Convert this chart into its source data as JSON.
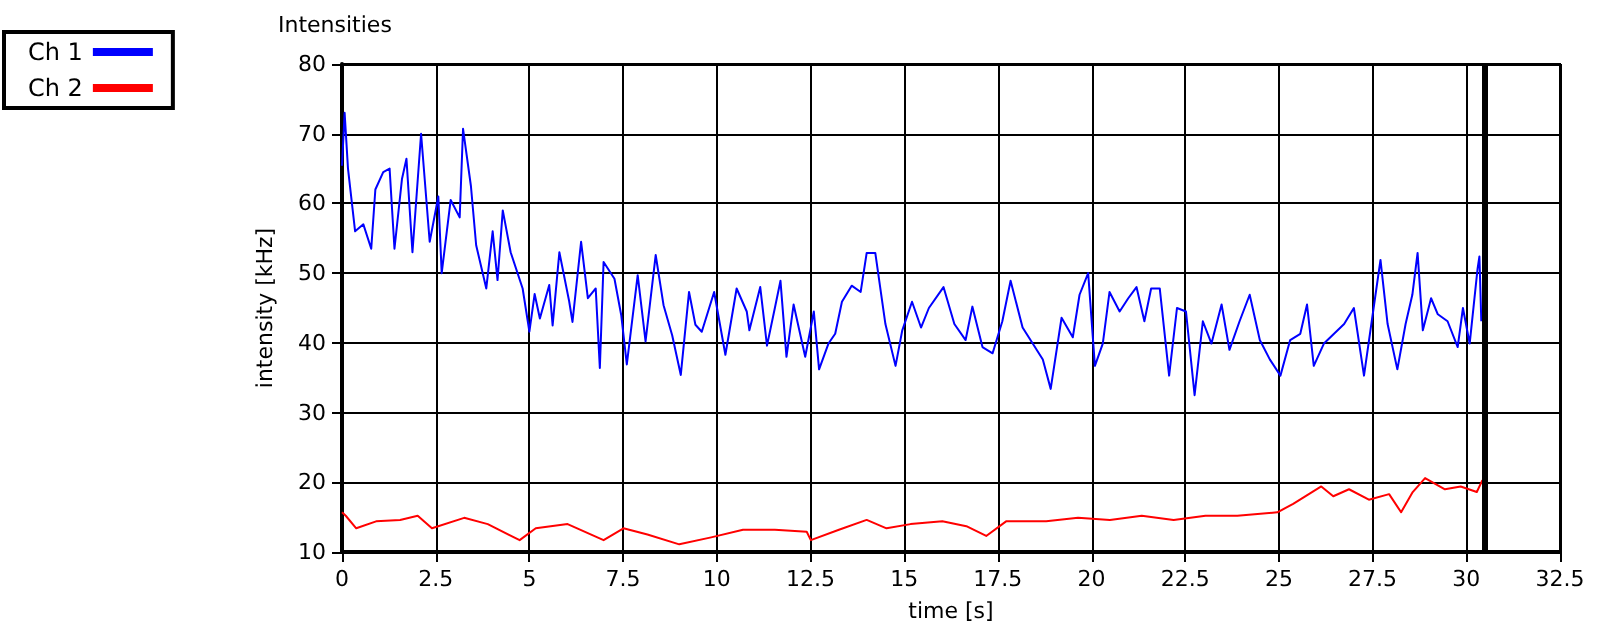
{
  "chart_data": {
    "type": "line",
    "title": "Intensities",
    "xlabel": "time [s]",
    "ylabel": "intensity [kHz]",
    "xlim": [
      0,
      32.5
    ],
    "xticks": [
      0,
      2.5,
      5,
      7.5,
      10,
      12.5,
      15,
      17.5,
      20,
      22.5,
      25,
      27.5,
      30,
      32.5
    ],
    "ylim": [
      10,
      80
    ],
    "yticks": [
      10,
      20,
      30,
      40,
      50,
      60,
      70,
      80
    ],
    "grid": true,
    "legend": "top left",
    "marker": "none",
    "line_style": "solid",
    "ref_lines": [
      {
        "axis": "x",
        "value": 30.5,
        "color": "#000000"
      }
    ],
    "series": [
      {
        "name": "Ch 1",
        "color": "#0000ff",
        "x": [
          0,
          0.07,
          0.16,
          0.35,
          0.57,
          0.78,
          0.89,
          1.1,
          1.27,
          1.4,
          1.6,
          1.72,
          1.88,
          2.11,
          2.34,
          2.57,
          2.66,
          2.9,
          3.14,
          3.23,
          3.44,
          3.58,
          3.85,
          4.02,
          4.15,
          4.29,
          4.5,
          4.82,
          5.0,
          5.14,
          5.28,
          5.53,
          5.62,
          5.8,
          6.06,
          6.15,
          6.38,
          6.56,
          6.77,
          6.88,
          6.98,
          7.27,
          7.45,
          7.6,
          7.89,
          8.1,
          8.37,
          8.58,
          8.81,
          9.04,
          9.26,
          9.43,
          9.6,
          9.93,
          10.23,
          10.53,
          10.8,
          10.87,
          11.16,
          11.34,
          11.55,
          11.7,
          11.86,
          12.05,
          12.36,
          12.59,
          12.73,
          12.98,
          13.16,
          13.34,
          13.6,
          13.84,
          14.0,
          14.23,
          14.5,
          14.77,
          14.95,
          15.21,
          15.45,
          15.66,
          16.05,
          16.34,
          16.64,
          16.82,
          17.09,
          17.36,
          17.62,
          17.84,
          18.16,
          18.43,
          18.7,
          18.91,
          19.2,
          19.5,
          19.68,
          19.91,
          20.09,
          20.3,
          20.48,
          20.75,
          20.98,
          21.2,
          21.41,
          21.59,
          21.82,
          22.07,
          22.28,
          22.52,
          22.75,
          22.97,
          23.2,
          23.47,
          23.68,
          23.95,
          24.22,
          24.49,
          24.76,
          25.04,
          25.3,
          25.57,
          25.75,
          25.93,
          26.2,
          26.47,
          26.74,
          27.0,
          27.27,
          27.54,
          27.71,
          27.9,
          28.16,
          28.38,
          28.56,
          28.7,
          28.84,
          29.06,
          29.24,
          29.5,
          29.77,
          29.91,
          30.09,
          30.3,
          30.35,
          30.4
        ],
        "values": [
          65.4,
          73,
          65,
          56,
          57,
          53.5,
          62,
          64.5,
          65,
          53.5,
          63.5,
          66.4,
          53,
          70,
          54.5,
          61,
          50,
          60.5,
          58,
          70.7,
          62.5,
          54,
          47.8,
          56,
          49,
          59,
          53,
          47.8,
          41.6,
          47,
          43.5,
          48.3,
          42.5,
          53,
          46,
          43,
          54.5,
          46.4,
          47.8,
          36.4,
          51.6,
          49.2,
          44,
          36.9,
          49.7,
          40.2,
          52.6,
          45.4,
          41.1,
          35.4,
          47.3,
          42.6,
          41.6,
          47.3,
          38.3,
          47.8,
          44.5,
          41.8,
          48,
          39.6,
          45,
          48.9,
          38,
          45.5,
          38,
          44.5,
          36.2,
          39.9,
          41.3,
          45.9,
          48.2,
          47.3,
          52.9,
          52.9,
          42.7,
          36.7,
          41.8,
          45.9,
          42.2,
          45,
          48,
          42.7,
          40.4,
          45.2,
          39.4,
          38.5,
          43.1,
          48.9,
          42.2,
          39.9,
          37.6,
          33.4,
          43.6,
          40.8,
          46.9,
          50,
          36.7,
          39.9,
          47.3,
          44.5,
          46.4,
          48,
          43.1,
          47.8,
          47.8,
          35.3,
          45,
          44.5,
          32.5,
          43.1,
          39.9,
          45.5,
          39,
          43.1,
          46.9,
          40.4,
          37.6,
          35.3,
          40.4,
          41.3,
          45.5,
          36.7,
          39.9,
          41.3,
          42.7,
          45,
          35.3,
          45.5,
          51.9,
          42.7,
          36.2,
          42.7,
          46.9,
          52.9,
          41.8,
          46.4,
          44.1,
          43.1,
          39.4,
          45,
          39.9,
          50.6,
          52.4,
          43.1
        ]
      },
      {
        "name": "Ch 2",
        "color": "#ff0000",
        "x": [
          0,
          0.1,
          0.38,
          0.91,
          1.55,
          2.02,
          2.4,
          3.26,
          3.89,
          4.74,
          5.17,
          6.02,
          6.98,
          7.51,
          8.15,
          9.0,
          9.85,
          10.7,
          11.55,
          12.4,
          12.51,
          13.26,
          14.0,
          14.53,
          15.17,
          16.02,
          16.66,
          17.19,
          17.72,
          18.79,
          19.64,
          20.49,
          21.34,
          22.19,
          23.04,
          23.89,
          24.96,
          25.38,
          26.13,
          26.45,
          26.87,
          27.4,
          27.94,
          28.26,
          28.57,
          28.9,
          29.43,
          29.85,
          30.28,
          30.43
        ],
        "values": [
          15.7,
          15.2,
          13.4,
          14.4,
          14.6,
          15.2,
          13.4,
          14.9,
          14,
          11.7,
          13.4,
          14,
          11.7,
          13.4,
          12.5,
          11.1,
          12.1,
          13.2,
          13.2,
          12.9,
          11.7,
          13.2,
          14.6,
          13.4,
          14,
          14.4,
          13.7,
          12.3,
          14.4,
          14.4,
          14.9,
          14.6,
          15.2,
          14.6,
          15.2,
          15.2,
          15.7,
          16.9,
          19.4,
          18,
          19,
          17.5,
          18.3,
          15.7,
          18.6,
          20.6,
          19,
          19.4,
          18.6,
          20.3
        ]
      }
    ]
  }
}
